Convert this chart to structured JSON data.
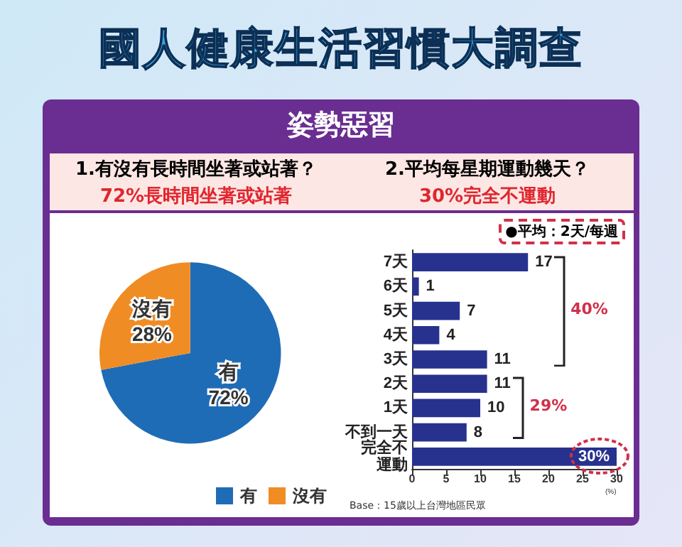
{
  "chart_data": [
    {
      "type": "other",
      "title": "國人健康生活習慣大調查",
      "subtitle": "姿勢惡習"
    },
    {
      "type": "pie",
      "title": "1.有沒有長時間坐著或站著？",
      "subtitle": "72%長時間坐著或站著",
      "categories": [
        "有",
        "沒有"
      ],
      "values": [
        72,
        28
      ],
      "colors": [
        "#1f6cb6",
        "#f08c24"
      ],
      "value_labels": [
        "72%",
        "28%"
      ],
      "legend": "bottom right"
    },
    {
      "type": "bar",
      "orientation": "horizontal",
      "title": "2.平均每星期運動幾天？",
      "subtitle": "30%完全不運動",
      "categories": [
        "7天",
        "6天",
        "5天",
        "4天",
        "3天",
        "2天",
        "1天",
        "不到一天",
        "完全不運動"
      ],
      "values": [
        17,
        1,
        7,
        4,
        11,
        11,
        10,
        8,
        30
      ],
      "color": "#27318e",
      "value_labels": [
        "17",
        "1",
        "7",
        "4",
        "11",
        "11",
        "10",
        "8",
        "30%"
      ],
      "xlim": [
        0,
        30
      ],
      "xticks": [
        0,
        5,
        10,
        15,
        20,
        25,
        30
      ],
      "xlabel": "(%)",
      "grid": false,
      "legend": false,
      "annotations": [
        "●平均：2天/每週",
        "40%",
        "29%",
        "Base：15歲以上台灣地區民眾"
      ]
    }
  ]
}
